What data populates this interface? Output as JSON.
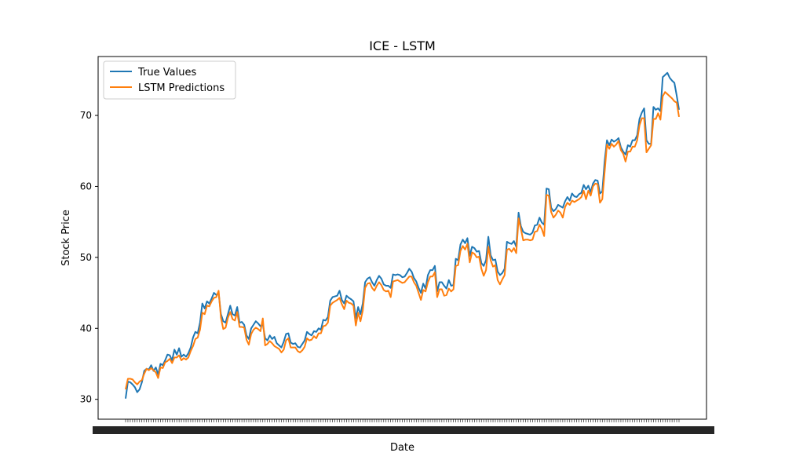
{
  "chart_data": {
    "type": "line",
    "title": "ICE - LSTM",
    "xlabel": "Date",
    "ylabel": "Stock Price",
    "ylim": [
      27.2,
      78.3
    ],
    "yticks": [
      30,
      40,
      50,
      60,
      70
    ],
    "grid": false,
    "legend_position": "top-left",
    "series": [
      {
        "name": "True Values",
        "color": "#1f77b4",
        "values": [
          30.1,
          32.5,
          32.4,
          32.1,
          31.7,
          31.0,
          31.4,
          32.4,
          34.0,
          34.3,
          34.2,
          34.8,
          34.0,
          34.5,
          33.5,
          35.0,
          34.8,
          35.5,
          36.3,
          36.2,
          35.5,
          37.0,
          36.3,
          37.2,
          36.0,
          36.3,
          36.0,
          36.5,
          37.3,
          38.7,
          39.5,
          39.3,
          40.8,
          43.5,
          42.8,
          43.8,
          43.5,
          44.2,
          45.0,
          44.7,
          45.0,
          42.0,
          41.0,
          40.8,
          42.0,
          43.2,
          42.0,
          41.8,
          43.0,
          40.8,
          40.9,
          40.5,
          39.0,
          38.5,
          40.0,
          40.5,
          41.0,
          40.7,
          40.3,
          40.6,
          38.6,
          38.3,
          39.0,
          38.5,
          38.8,
          37.9,
          37.6,
          37.3,
          38.1,
          39.2,
          39.3,
          38.0,
          37.8,
          37.9,
          37.4,
          37.3,
          37.8,
          38.3,
          39.5,
          39.2,
          39.0,
          39.6,
          39.5,
          40.0,
          39.8,
          41.2,
          41.1,
          41.6,
          43.9,
          44.4,
          44.5,
          44.6,
          45.3,
          44.0,
          43.5,
          44.6,
          44.3,
          44.1,
          43.8,
          41.4,
          43.0,
          42.0,
          43.5,
          46.5,
          47.0,
          47.2,
          46.5,
          46.0,
          46.8,
          47.4,
          47.0,
          46.2,
          46.0,
          46.0,
          45.7,
          47.6,
          47.5,
          47.6,
          47.5,
          47.2,
          47.3,
          47.8,
          48.4,
          48.0,
          47.1,
          46.6,
          45.7,
          45.0,
          46.3,
          45.6,
          47.5,
          48.2,
          48.2,
          48.8,
          45.2,
          46.5,
          46.5,
          46.0,
          45.6,
          46.8,
          46.0,
          46.1,
          49.8,
          49.6,
          51.8,
          52.5,
          52.0,
          52.7,
          50.2,
          51.5,
          51.3,
          50.8,
          50.9,
          49.2,
          48.8,
          49.6,
          52.9,
          50.3,
          49.6,
          49.7,
          48.0,
          47.5,
          47.8,
          48.4,
          52.2,
          52.0,
          51.9,
          52.3,
          51.5,
          56.3,
          54.4,
          53.6,
          53.4,
          53.3,
          53.2,
          53.5,
          54.5,
          54.6,
          55.6,
          54.9,
          54.6,
          59.7,
          59.6,
          57.0,
          56.5,
          56.8,
          57.4,
          57.2,
          57.0,
          57.9,
          58.5,
          58.0,
          59.0,
          58.6,
          58.5,
          58.9,
          59.1,
          60.2,
          59.6,
          60.1,
          59.2,
          60.4,
          60.9,
          60.8,
          59.0,
          59.3,
          63.5,
          66.5,
          65.8,
          66.6,
          66.3,
          66.5,
          66.8,
          65.5,
          64.9,
          64.5,
          65.8,
          65.6,
          66.5,
          66.5,
          67.2,
          69.5,
          70.4,
          71.0,
          66.5,
          66.0,
          66.0,
          71.2,
          70.8,
          71.0,
          70.6,
          75.4,
          75.7,
          76.0,
          75.3,
          74.9,
          74.6,
          72.8,
          70.8
        ],
        "x_min": 0,
        "x_max": 239
      },
      {
        "name": "LSTM Predictions",
        "color": "#ff7f0e",
        "values": [
          31.4,
          32.9,
          32.9,
          32.8,
          32.4,
          32.1,
          32.5,
          32.7,
          33.6,
          34.3,
          34.1,
          34.4,
          34.1,
          33.8,
          33.0,
          34.5,
          34.4,
          35.2,
          35.4,
          35.7,
          35.1,
          35.9,
          35.9,
          36.2,
          35.5,
          35.8,
          35.6,
          35.9,
          36.8,
          37.5,
          38.5,
          38.7,
          39.8,
          42.2,
          42.0,
          43.2,
          43.1,
          43.8,
          44.3,
          44.4,
          45.3,
          41.5,
          39.9,
          40.1,
          41.5,
          42.3,
          41.3,
          41.1,
          42.3,
          40.2,
          40.2,
          40.1,
          38.4,
          37.7,
          39.2,
          39.8,
          40.1,
          39.9,
          39.6,
          41.4,
          37.6,
          37.8,
          38.2,
          37.9,
          37.5,
          37.3,
          37.1,
          36.6,
          37.0,
          38.3,
          38.6,
          37.3,
          37.3,
          37.3,
          36.8,
          36.6,
          36.9,
          37.4,
          38.6,
          38.3,
          38.4,
          38.9,
          38.6,
          39.3,
          39.3,
          40.3,
          40.4,
          40.8,
          43.2,
          43.6,
          43.8,
          44.0,
          44.3,
          43.4,
          42.7,
          43.9,
          43.6,
          43.5,
          43.2,
          40.4,
          42.2,
          41.0,
          42.5,
          45.7,
          46.3,
          46.4,
          45.7,
          45.3,
          46.0,
          46.5,
          46.1,
          45.4,
          45.2,
          45.3,
          44.4,
          46.6,
          46.7,
          46.8,
          46.6,
          46.4,
          46.5,
          46.9,
          47.3,
          47.3,
          46.5,
          46.0,
          45.0,
          44.0,
          45.4,
          45.2,
          46.5,
          47.3,
          47.3,
          47.9,
          44.4,
          45.5,
          45.5,
          44.6,
          44.7,
          45.6,
          45.2,
          45.5,
          48.8,
          48.9,
          50.9,
          51.6,
          51.1,
          51.9,
          49.3,
          50.7,
          50.5,
          50.0,
          50.1,
          48.4,
          47.4,
          48.2,
          51.5,
          49.6,
          48.7,
          48.9,
          46.8,
          46.2,
          46.9,
          47.5,
          51.1,
          51.2,
          50.8,
          51.3,
          50.6,
          55.5,
          54.0,
          52.4,
          52.5,
          52.5,
          52.4,
          52.5,
          53.6,
          53.7,
          54.6,
          54.0,
          53.0,
          58.8,
          58.7,
          56.4,
          55.6,
          56.0,
          56.6,
          56.3,
          55.6,
          57.1,
          57.7,
          57.4,
          58.0,
          57.8,
          58.0,
          58.2,
          58.5,
          59.4,
          58.2,
          59.4,
          58.7,
          60.0,
          60.4,
          60.3,
          57.7,
          58.2,
          62.0,
          65.9,
          65.3,
          66.0,
          65.6,
          65.9,
          66.4,
          65.1,
          64.6,
          63.5,
          64.9,
          64.9,
          65.6,
          65.6,
          66.5,
          68.6,
          69.6,
          69.6,
          64.8,
          65.3,
          65.8,
          69.5,
          69.5,
          70.3,
          69.4,
          72.7,
          73.3,
          73.0,
          72.7,
          72.4,
          72.0,
          71.8,
          69.8
        ],
        "x_min": 0,
        "x_max": 239
      }
    ]
  }
}
